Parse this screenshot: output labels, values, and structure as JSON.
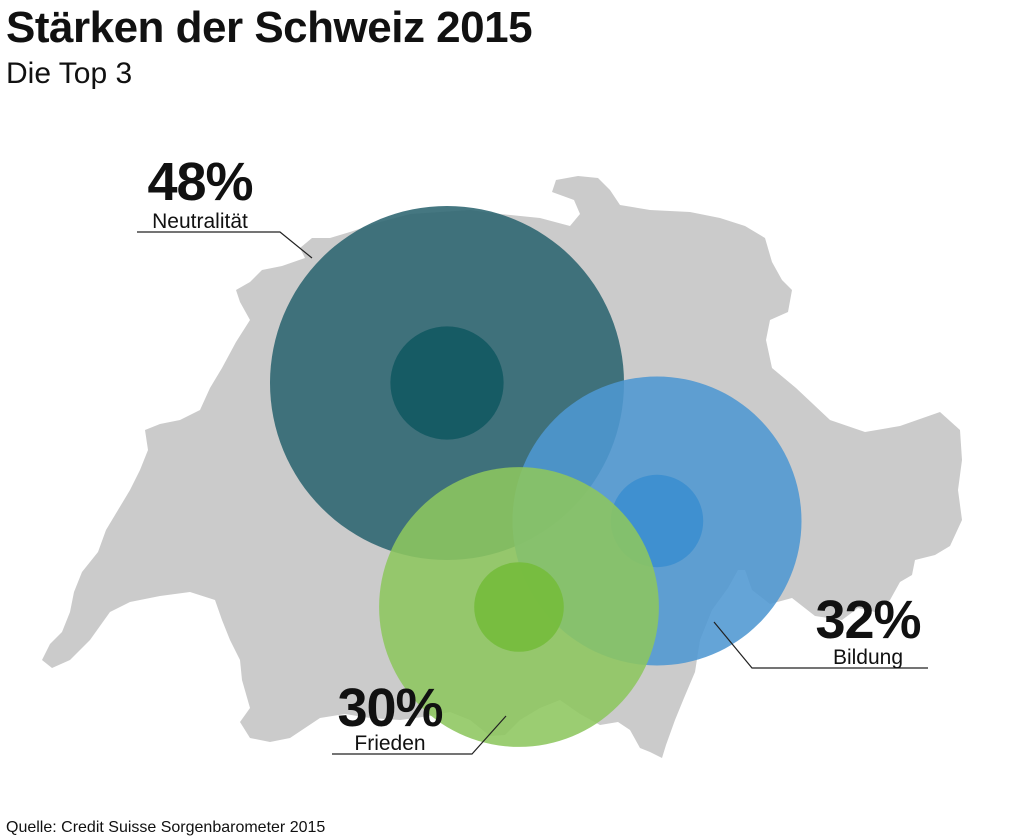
{
  "title": "Stärken der Schweiz 2015",
  "subtitle": "Die Top 3",
  "source": "Quelle: Credit Suisse Sorgenbarometer 2015",
  "chart_data": {
    "type": "bubble",
    "title": "Stärken der Schweiz 2015",
    "subtitle": "Die Top 3",
    "unit": "%",
    "series": [
      {
        "name": "Neutralität",
        "value": 48,
        "label": "48%",
        "color": "#2b6470",
        "core_color": "#145a63"
      },
      {
        "name": "Bildung",
        "value": 32,
        "label": "32%",
        "color": "#4e97d1",
        "core_color": "#3d8fd0"
      },
      {
        "name": "Frieden",
        "value": 30,
        "label": "30%",
        "color": "#8dc65e",
        "core_color": "#76bd3e"
      }
    ],
    "background": "map of Switzerland",
    "map_color": "#cbcbcb"
  }
}
